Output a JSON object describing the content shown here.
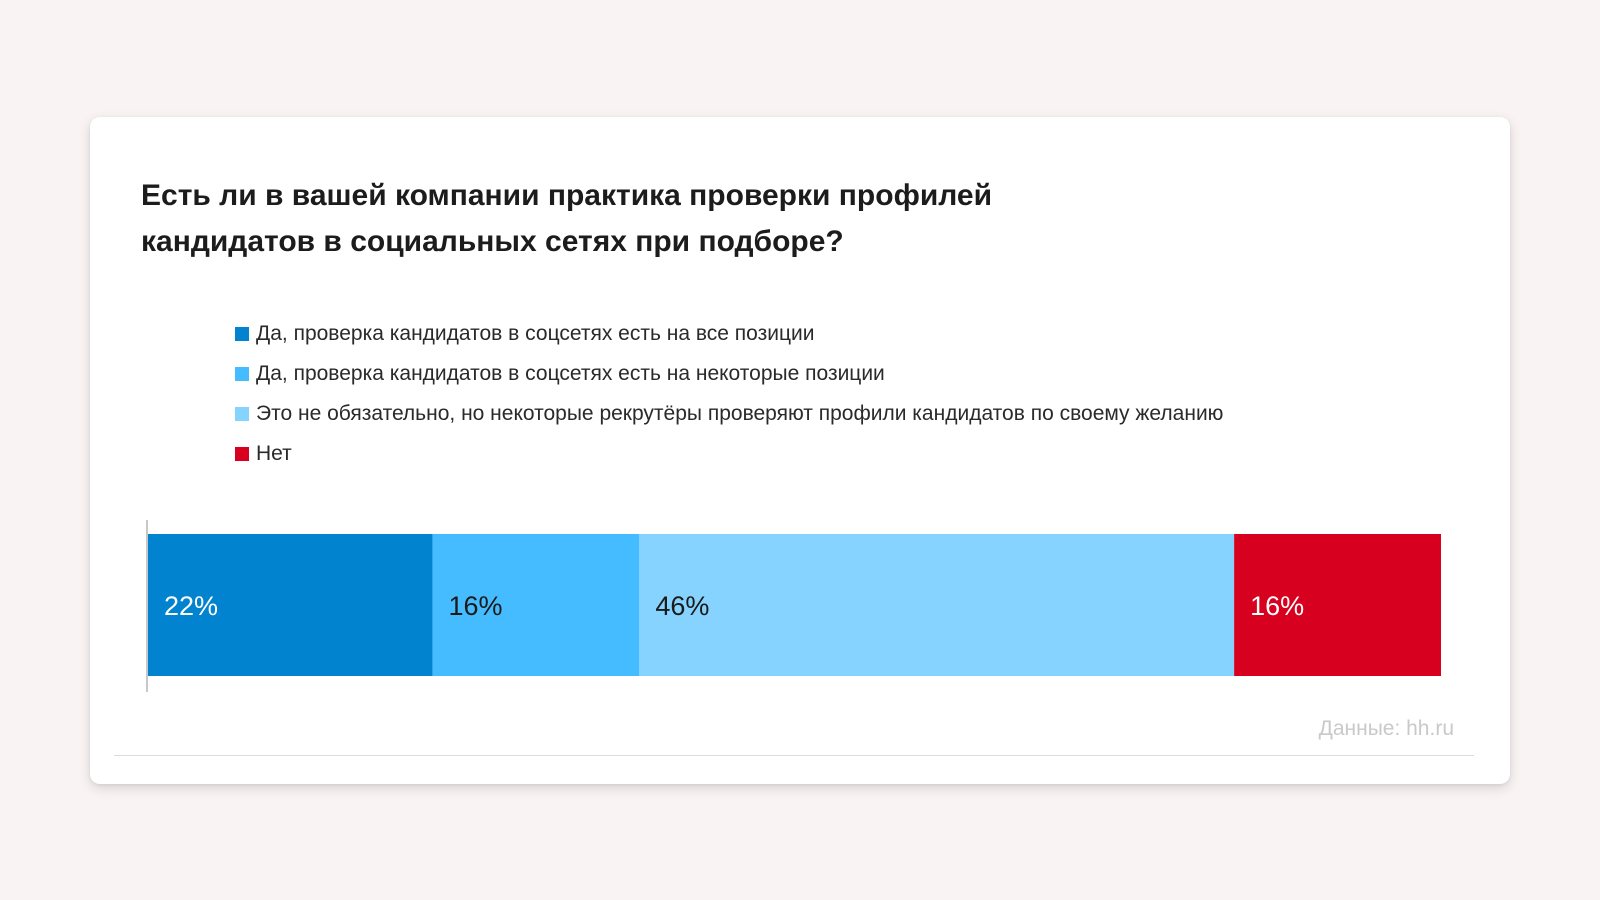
{
  "chart_data": {
    "type": "bar",
    "orientation": "horizontal",
    "stacked": true,
    "title": "Есть ли в вашей компании практика проверки профилей кандидатов в социальных сетях при подборе?",
    "legend_position": "top",
    "grid": false,
    "xlim": [
      0,
      100
    ],
    "series": [
      {
        "name": "Да, проверка кандидатов в соцсетях есть на все позиции",
        "value": 22,
        "label": "22%",
        "color": "#0283cf"
      },
      {
        "name": "Да, проверка кандидатов в соцсетях есть на некоторые позиции",
        "value": 16,
        "label": "16%",
        "color": "#45bcff"
      },
      {
        "name": "Это не обязательно, но некоторые рекрутёры проверяют профили кандидатов по своему желанию",
        "value": 46,
        "label": "46%",
        "color": "#85d3fe"
      },
      {
        "name": "Нет",
        "value": 16,
        "label": "16%",
        "color": "#d7001f"
      }
    ]
  },
  "source": "Данные: hh.ru"
}
